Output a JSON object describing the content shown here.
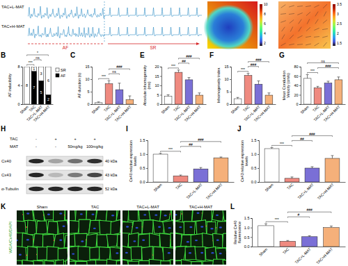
{
  "chart_data": [
    {
      "type": "bar",
      "panel": "B",
      "stacked": true,
      "categories": [
        "Sham",
        "TAC",
        "TAC+L-MAT",
        "TAC+H-MAT"
      ],
      "series": [
        {
          "name": "AF",
          "color": "#000000",
          "values": [
            0,
            7,
            5,
            2
          ]
        },
        {
          "name": "SR",
          "color": "#ffffff",
          "values": [
            8,
            1,
            3,
            6
          ]
        }
      ],
      "ylabel": "AF inducibility",
      "ylim": [
        0,
        8
      ],
      "yticks": [
        0,
        4,
        8
      ],
      "data_labels": true,
      "legend": "right",
      "annotations": [
        {
          "text": "***",
          "between": [
            "Sham",
            "TAC"
          ]
        },
        {
          "text": "ns",
          "between": [
            "TAC",
            "TAC+L-MAT"
          ]
        },
        {
          "text": "*",
          "between": [
            "Sham",
            "TAC+H-MAT"
          ]
        }
      ]
    },
    {
      "type": "bar",
      "panel": "C",
      "categories": [
        "Sham",
        "TAC",
        "TAC+L-MAT",
        "TAC+H-MAT"
      ],
      "values": [
        0.6,
        8.2,
        5.8,
        1.8
      ],
      "errors": [
        0.3,
        1.2,
        2.6,
        1.5
      ],
      "colors": [
        "#ffffff",
        "#ef8a80",
        "#7a6fd6",
        "#f5b07a"
      ],
      "ylabel": "AF duration (s)",
      "ylim": [
        0,
        15
      ],
      "yticks": [
        0,
        5,
        10,
        15
      ],
      "annotations": [
        {
          "text": "***",
          "between": [
            "Sham",
            "TAC"
          ]
        },
        {
          "text": "ns",
          "between": [
            "TAC",
            "TAC+L-MAT"
          ]
        },
        {
          "text": "###",
          "between": [
            "TAC",
            "TAC+H-MAT"
          ]
        }
      ]
    },
    {
      "type": "bar",
      "panel": "E",
      "categories": [
        "Sham",
        "TAC",
        "TAC+L-MAT",
        "TAC+H-MAT"
      ],
      "values": [
        4.2,
        17,
        13,
        4.8
      ],
      "errors": [
        0.8,
        1.2,
        1.2,
        1.2
      ],
      "colors": [
        "#ffffff",
        "#ef8a80",
        "#7a6fd6",
        "#f5b07a"
      ],
      "ylabel": "Absolute inhomogeneity (ms)",
      "ylim": [
        0,
        20
      ],
      "yticks": [
        0,
        5,
        10,
        15,
        20
      ],
      "annotations": [
        {
          "text": "***",
          "between": [
            "Sham",
            "TAC"
          ]
        },
        {
          "text": "##",
          "between": [
            "TAC",
            "TAC+L-MAT"
          ]
        },
        {
          "text": "###",
          "between": [
            "TAC",
            "TAC+H-MAT"
          ]
        }
      ]
    },
    {
      "type": "bar",
      "panel": "F",
      "categories": [
        "Sham",
        "TAC",
        "TAC+L-MAT",
        "TAC+H-MAT"
      ],
      "values": [
        2.2,
        11.5,
        8,
        3.6
      ],
      "errors": [
        0.5,
        0.8,
        1.3,
        0.9
      ],
      "colors": [
        "#ffffff",
        "#ef8a80",
        "#7a6fd6",
        "#f5b07a"
      ],
      "ylabel": "Inhomogeneity index",
      "ylim": [
        0,
        15
      ],
      "yticks": [
        0,
        5,
        10,
        15
      ],
      "annotations": [
        {
          "text": "***",
          "between": [
            "Sham",
            "TAC"
          ]
        },
        {
          "text": "###",
          "between": [
            "TAC",
            "TAC+L-MAT"
          ]
        },
        {
          "text": "###",
          "between": [
            "TAC",
            "TAC+H-MAT"
          ]
        }
      ]
    },
    {
      "type": "bar",
      "panel": "G",
      "categories": [
        "Sham",
        "TAC",
        "TAC+L-MAT",
        "TAC+H-MAT"
      ],
      "values": [
        55,
        35,
        45,
        52
      ],
      "errors": [
        8,
        3,
        4,
        6
      ],
      "colors": [
        "#ffffff",
        "#ef8a80",
        "#7a6fd6",
        "#f5b07a"
      ],
      "ylabel": "Mean Conduction Velocity (cm/s)",
      "ylim": [
        0,
        80
      ],
      "yticks": [
        0,
        20,
        40,
        60,
        80
      ],
      "annotations": [
        {
          "text": "***",
          "between": [
            "Sham",
            "TAC"
          ]
        },
        {
          "text": "###",
          "between": [
            "TAC",
            "TAC+H-MAT"
          ]
        },
        {
          "text": "ns",
          "between": [
            "Sham",
            "TAC+H-MAT"
          ]
        }
      ]
    },
    {
      "type": "bar",
      "panel": "I",
      "categories": [
        "Sham",
        "TAC",
        "TAC+L-MAT",
        "TAC+H-MAT"
      ],
      "values": [
        1.0,
        0.22,
        0.47,
        0.87
      ],
      "errors": [
        0.03,
        0.03,
        0.05,
        0.03
      ],
      "colors": [
        "#ffffff",
        "#ef8a80",
        "#7a6fd6",
        "#f5b07a"
      ],
      "ylabel": "Cx40 relative expression levels",
      "ylim": [
        0,
        1.5
      ],
      "yticks": [
        {
          "value": 0,
          "label": "0.0"
        },
        {
          "value": 0.5,
          "label": "0.5"
        },
        {
          "value": 1,
          "label": "1.0"
        },
        {
          "value": 1.5,
          "label": "1.5"
        }
      ],
      "annotations": [
        {
          "text": "***",
          "between": [
            "Sham",
            "TAC"
          ]
        },
        {
          "text": "##",
          "between": [
            "TAC",
            "TAC+L-MAT"
          ]
        },
        {
          "text": "###",
          "between": [
            "TAC",
            "TAC+H-MAT"
          ]
        }
      ]
    },
    {
      "type": "bar",
      "panel": "J",
      "categories": [
        "Sham",
        "TAC",
        "TAC+L-MAT",
        "TAC+H-MAT"
      ],
      "values": [
        1.2,
        0.13,
        0.5,
        0.85
      ],
      "errors": [
        0.04,
        0.05,
        0.05,
        0.1
      ],
      "colors": [
        "#ffffff",
        "#ef8a80",
        "#7a6fd6",
        "#f5b07a"
      ],
      "ylabel": "Cx43 relative expression levels",
      "ylim": [
        0,
        1.5
      ],
      "yticks": [
        {
          "value": 0,
          "label": "0.0"
        },
        {
          "value": 0.5,
          "label": "0.5"
        },
        {
          "value": 1,
          "label": "1.0"
        },
        {
          "value": 1.5,
          "label": "1.5"
        }
      ],
      "annotations": [
        {
          "text": "***",
          "between": [
            "Sham",
            "TAC"
          ]
        },
        {
          "text": "##",
          "between": [
            "TAC",
            "TAC+L-MAT"
          ]
        },
        {
          "text": "###",
          "between": [
            "TAC",
            "TAC+H-MAT"
          ]
        }
      ]
    },
    {
      "type": "bar",
      "panel": "L",
      "categories": [
        "Sham",
        "TAC",
        "TAC+L-MAT",
        "TAC+H-MAT"
      ],
      "values": [
        1.1,
        0.28,
        0.52,
        1.0
      ],
      "errors": [
        0.1,
        0.04,
        0.05,
        0.08
      ],
      "colors": [
        "#ffffff",
        "#ef8a80",
        "#7a6fd6",
        "#f5b07a"
      ],
      "ylabel": "Relative Cx40 fluorescence",
      "ylim": [
        0,
        1.5
      ],
      "yticks": [
        {
          "value": 0,
          "label": "0.0"
        },
        {
          "value": 0.5,
          "label": "0.5"
        },
        {
          "value": 1,
          "label": "1.0"
        },
        {
          "value": 1.5,
          "label": "1.5"
        }
      ],
      "annotations": [
        {
          "text": "***",
          "between": [
            "Sham",
            "TAC"
          ]
        },
        {
          "text": "#",
          "between": [
            "TAC",
            "TAC+L-MAT"
          ]
        },
        {
          "text": "###",
          "between": [
            "TAC",
            "TAC+H-MAT"
          ]
        }
      ]
    }
  ],
  "ecg": {
    "traces": [
      "TAC+L-MAT",
      "TAC+H-MAT"
    ],
    "af": "AF",
    "sr": "SR"
  },
  "maps": [
    {
      "colorbar": [
        "10",
        "8",
        "6",
        "4",
        "2"
      ]
    },
    {
      "colorbar": [
        "3.5",
        "3",
        "2.5",
        "2",
        "1.5"
      ]
    }
  ],
  "blot": {
    "panel": "H",
    "conditions": [
      {
        "label": "TAC",
        "lanes": [
          "-",
          "+",
          "+",
          "+"
        ]
      },
      {
        "label": "MAT",
        "lanes": [
          "-",
          "-",
          "50mg/kg",
          "100mg/kg"
        ]
      }
    ],
    "proteins": [
      {
        "name": "Cx40",
        "size": "40 kDa"
      },
      {
        "name": "Cx43",
        "size": "43 kDa"
      },
      {
        "name": "α-Tubulin",
        "size": "52 kDa"
      }
    ]
  },
  "images": {
    "panel": "K",
    "stain": "WGA/Cx40/DAPI",
    "groups": [
      "Sham",
      "TAC",
      "TAC+L-MAT",
      "TAC+H-MAT"
    ]
  }
}
